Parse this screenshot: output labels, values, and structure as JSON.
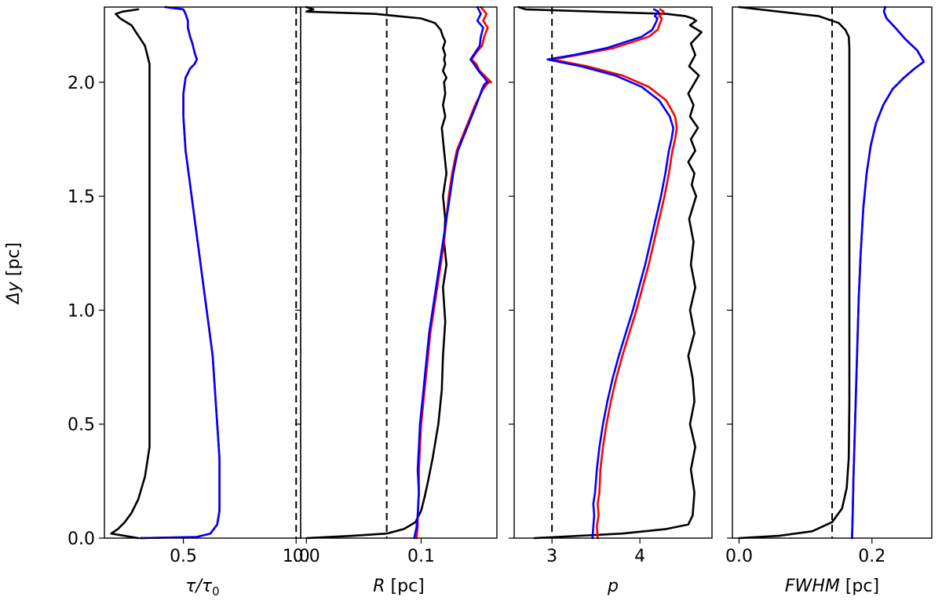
{
  "figure": {
    "ylabel_main": "Δy",
    "ylabel_unit": " [pc]",
    "ylim": [
      0,
      2.33
    ],
    "yticks": [
      0.0,
      0.5,
      1.0,
      1.5,
      2.0
    ],
    "ytick_labels": [
      "0.0",
      "0.5",
      "1.0",
      "1.5",
      "2.0"
    ]
  },
  "chart_data": [
    {
      "type": "line",
      "id": "tau",
      "xlabel_main": "τ/τ",
      "xlabel_sub": "0",
      "xlabel_unit": "",
      "xlim": [
        0.15,
        1.02
      ],
      "xticks": [
        0.5,
        1.0
      ],
      "xtick_labels": [
        "0.5",
        "1.0"
      ],
      "reference_x": 1.0,
      "series": [
        {
          "name": "black",
          "color": "#000000",
          "x": [
            0.3,
            0.18,
            0.21,
            0.24,
            0.27,
            0.3,
            0.33,
            0.35,
            0.35,
            0.35,
            0.35,
            0.35,
            0.35,
            0.35,
            0.35,
            0.35,
            0.35,
            0.35,
            0.35,
            0.34,
            0.33,
            0.31,
            0.29,
            0.27,
            0.22,
            0.2,
            0.23,
            0.3
          ],
          "y": [
            0.0,
            0.02,
            0.04,
            0.07,
            0.11,
            0.17,
            0.27,
            0.4,
            0.6,
            0.8,
            1.0,
            1.2,
            1.4,
            1.6,
            1.8,
            1.9,
            1.98,
            2.04,
            2.08,
            2.12,
            2.16,
            2.19,
            2.22,
            2.25,
            2.28,
            2.3,
            2.31,
            2.32
          ]
        },
        {
          "name": "red",
          "color": "#ff0000",
          "x": [
            0.31,
            0.56,
            0.62,
            0.65,
            0.66,
            0.66,
            0.66,
            0.65,
            0.64,
            0.63,
            0.61,
            0.59,
            0.57,
            0.55,
            0.53,
            0.51,
            0.5,
            0.5,
            0.51,
            0.53,
            0.55,
            0.56,
            0.55,
            0.54,
            0.53,
            0.52,
            0.52,
            0.51,
            0.5,
            0.42
          ],
          "y": [
            0.0,
            0.005,
            0.02,
            0.06,
            0.12,
            0.2,
            0.35,
            0.5,
            0.65,
            0.8,
            0.95,
            1.1,
            1.25,
            1.4,
            1.55,
            1.7,
            1.85,
            1.95,
            2.02,
            2.06,
            2.08,
            2.1,
            2.13,
            2.17,
            2.2,
            2.24,
            2.27,
            2.3,
            2.32,
            2.33
          ]
        },
        {
          "name": "blue",
          "color": "#0000ff",
          "x": [
            0.31,
            0.56,
            0.62,
            0.65,
            0.66,
            0.66,
            0.66,
            0.65,
            0.64,
            0.63,
            0.61,
            0.59,
            0.57,
            0.55,
            0.53,
            0.51,
            0.5,
            0.5,
            0.51,
            0.53,
            0.55,
            0.56,
            0.55,
            0.54,
            0.53,
            0.52,
            0.52,
            0.51,
            0.5,
            0.42
          ],
          "y": [
            0.0,
            0.005,
            0.02,
            0.06,
            0.12,
            0.2,
            0.35,
            0.5,
            0.65,
            0.8,
            0.95,
            1.1,
            1.25,
            1.4,
            1.55,
            1.7,
            1.85,
            1.95,
            2.02,
            2.06,
            2.08,
            2.1,
            2.13,
            2.17,
            2.2,
            2.24,
            2.27,
            2.3,
            2.32,
            2.33
          ]
        }
      ]
    },
    {
      "type": "line",
      "id": "R",
      "xlabel_main": "R",
      "xlabel_sub": "",
      "xlabel_unit": " [pc]",
      "xlim": [
        -0.005,
        0.166
      ],
      "xticks": [
        0.0,
        0.1
      ],
      "xtick_labels": [
        "0.0",
        "0.1"
      ],
      "reference_x": 0.07,
      "series": [
        {
          "name": "black",
          "color": "#000000",
          "x": [
            0.0,
            0.04,
            0.07,
            0.085,
            0.095,
            0.1,
            0.103,
            0.106,
            0.11,
            0.115,
            0.118,
            0.119,
            0.121,
            0.119,
            0.122,
            0.12,
            0.121,
            0.119,
            0.122,
            0.12,
            0.118,
            0.121,
            0.119,
            0.121,
            0.12,
            0.122,
            0.119,
            0.121,
            0.12,
            0.121,
            0.119,
            0.121,
            0.119,
            0.117,
            0.112,
            0.1,
            0.06,
            0.0,
            0.006,
            0.0
          ],
          "y": [
            0.0,
            0.01,
            0.02,
            0.04,
            0.07,
            0.12,
            0.18,
            0.25,
            0.35,
            0.5,
            0.65,
            0.8,
            0.95,
            1.1,
            1.2,
            1.3,
            1.4,
            1.5,
            1.6,
            1.7,
            1.8,
            1.85,
            1.9,
            1.95,
            2.0,
            2.02,
            2.05,
            2.08,
            2.1,
            2.12,
            2.15,
            2.18,
            2.2,
            2.23,
            2.26,
            2.28,
            2.3,
            2.31,
            2.32,
            2.33
          ]
        },
        {
          "name": "red",
          "color": "#ff0000",
          "x": [
            0.096,
            0.097,
            0.097,
            0.098,
            0.098,
            0.099,
            0.1,
            0.102,
            0.104,
            0.106,
            0.108,
            0.111,
            0.114,
            0.117,
            0.12,
            0.122,
            0.124,
            0.127,
            0.131,
            0.135,
            0.139,
            0.143,
            0.147,
            0.151,
            0.154,
            0.157,
            0.159,
            0.161,
            0.157,
            0.151,
            0.148,
            0.144,
            0.148,
            0.153,
            0.155,
            0.158,
            0.154,
            0.157,
            0.152
          ],
          "y": [
            0.0,
            0.05,
            0.1,
            0.2,
            0.3,
            0.4,
            0.5,
            0.6,
            0.7,
            0.8,
            0.9,
            1.0,
            1.1,
            1.2,
            1.3,
            1.4,
            1.5,
            1.6,
            1.7,
            1.75,
            1.8,
            1.85,
            1.9,
            1.94,
            1.97,
            1.99,
            2.0,
            2.0,
            2.02,
            2.05,
            2.08,
            2.1,
            2.13,
            2.16,
            2.2,
            2.24,
            2.27,
            2.3,
            2.33
          ]
        },
        {
          "name": "blue",
          "color": "#0000ff",
          "x": [
            0.094,
            0.096,
            0.097,
            0.098,
            0.097,
            0.098,
            0.099,
            0.101,
            0.103,
            0.105,
            0.107,
            0.11,
            0.113,
            0.116,
            0.119,
            0.122,
            0.125,
            0.128,
            0.132,
            0.136,
            0.14,
            0.144,
            0.148,
            0.151,
            0.153,
            0.155,
            0.157,
            0.158,
            0.155,
            0.15,
            0.146,
            0.143,
            0.147,
            0.151,
            0.152,
            0.154,
            0.149,
            0.152,
            0.149
          ],
          "y": [
            0.0,
            0.05,
            0.1,
            0.2,
            0.3,
            0.4,
            0.5,
            0.6,
            0.7,
            0.8,
            0.9,
            1.0,
            1.1,
            1.2,
            1.3,
            1.4,
            1.5,
            1.6,
            1.7,
            1.75,
            1.8,
            1.85,
            1.9,
            1.94,
            1.97,
            1.99,
            2.0,
            2.0,
            2.02,
            2.05,
            2.08,
            2.1,
            2.13,
            2.16,
            2.2,
            2.24,
            2.27,
            2.3,
            2.33
          ]
        }
      ]
    },
    {
      "type": "line",
      "id": "p",
      "xlabel_main": "p",
      "xlabel_sub": "",
      "xlabel_unit": "",
      "xlim": [
        2.57,
        4.82
      ],
      "xticks": [
        3,
        4
      ],
      "xtick_labels": [
        "3",
        "4"
      ],
      "reference_x": 3.0,
      "series": [
        {
          "name": "black",
          "color": "#000000",
          "x": [
            2.8,
            3.8,
            4.3,
            4.55,
            4.6,
            4.62,
            4.58,
            4.63,
            4.57,
            4.62,
            4.6,
            4.55,
            4.62,
            4.57,
            4.63,
            4.58,
            4.61,
            4.56,
            4.64,
            4.59,
            4.62,
            4.55,
            4.63,
            4.58,
            4.66,
            4.57,
            4.61,
            4.55,
            4.67,
            4.56,
            4.63,
            4.58,
            4.7,
            4.57,
            4.64,
            4.6,
            4.52,
            4.3,
            3.5,
            2.7,
            2.62
          ],
          "y": [
            0.0,
            0.02,
            0.04,
            0.06,
            0.1,
            0.2,
            0.3,
            0.4,
            0.5,
            0.6,
            0.7,
            0.8,
            0.9,
            1.0,
            1.1,
            1.2,
            1.3,
            1.4,
            1.5,
            1.55,
            1.6,
            1.65,
            1.7,
            1.75,
            1.8,
            1.85,
            1.9,
            1.95,
            2.03,
            2.07,
            2.12,
            2.17,
            2.22,
            2.25,
            2.27,
            2.28,
            2.29,
            2.3,
            2.31,
            2.32,
            2.33
          ]
        },
        {
          "name": "red",
          "color": "#ff0000",
          "x": [
            3.52,
            3.51,
            3.53,
            3.52,
            3.54,
            3.55,
            3.58,
            3.62,
            3.67,
            3.73,
            3.8,
            3.88,
            3.96,
            4.03,
            4.1,
            4.16,
            4.22,
            4.28,
            4.33,
            4.37,
            4.4,
            4.42,
            4.4,
            4.3,
            4.1,
            3.8,
            3.4,
            3.0,
            3.3,
            3.7,
            4.1,
            4.2,
            4.23,
            4.25,
            4.22,
            4.25,
            4.27,
            4.23
          ],
          "y": [
            0.0,
            0.05,
            0.1,
            0.15,
            0.2,
            0.3,
            0.4,
            0.5,
            0.6,
            0.7,
            0.8,
            0.9,
            1.0,
            1.1,
            1.2,
            1.3,
            1.4,
            1.5,
            1.6,
            1.7,
            1.75,
            1.8,
            1.85,
            1.92,
            1.98,
            2.03,
            2.07,
            2.1,
            2.12,
            2.15,
            2.2,
            2.23,
            2.26,
            2.28,
            2.29,
            2.3,
            2.31,
            2.32
          ]
        },
        {
          "name": "blue",
          "color": "#0000ff",
          "x": [
            3.46,
            3.47,
            3.48,
            3.47,
            3.49,
            3.51,
            3.54,
            3.58,
            3.63,
            3.69,
            3.76,
            3.84,
            3.92,
            3.99,
            4.06,
            4.12,
            4.18,
            4.24,
            4.29,
            4.33,
            4.36,
            4.38,
            4.34,
            4.22,
            4.02,
            3.72,
            3.33,
            2.95,
            3.25,
            3.62,
            4.02,
            4.14,
            4.18,
            4.2,
            4.17,
            4.19,
            4.21,
            4.16
          ],
          "y": [
            0.0,
            0.05,
            0.1,
            0.15,
            0.2,
            0.3,
            0.4,
            0.5,
            0.6,
            0.7,
            0.8,
            0.9,
            1.0,
            1.1,
            1.2,
            1.3,
            1.4,
            1.5,
            1.6,
            1.7,
            1.75,
            1.8,
            1.85,
            1.92,
            1.98,
            2.03,
            2.07,
            2.1,
            2.12,
            2.15,
            2.2,
            2.23,
            2.26,
            2.28,
            2.29,
            2.3,
            2.31,
            2.32
          ]
        }
      ]
    },
    {
      "type": "line",
      "id": "fwhm",
      "xlabel_main": "FWHM",
      "xlabel_sub": "",
      "xlabel_unit": " [pc]",
      "xlim": [
        -0.01,
        0.29
      ],
      "xticks": [
        0.0,
        0.2
      ],
      "xtick_labels": [
        "0.0",
        "0.2"
      ],
      "reference_x": 0.14,
      "series": [
        {
          "name": "black",
          "color": "#000000",
          "x": [
            0.0,
            0.06,
            0.11,
            0.14,
            0.155,
            0.162,
            0.165,
            0.166,
            0.166,
            0.166,
            0.166,
            0.166,
            0.166,
            0.165,
            0.16,
            0.15,
            0.12,
            0.06,
            0.0
          ],
          "y": [
            0.0,
            0.01,
            0.03,
            0.07,
            0.13,
            0.22,
            0.35,
            0.6,
            1.0,
            1.4,
            1.8,
            2.05,
            2.15,
            2.2,
            2.23,
            2.26,
            2.29,
            2.31,
            2.33
          ]
        },
        {
          "name": "red",
          "color": "#ff0000",
          "x": [
            0.17,
            0.171,
            0.172,
            0.174,
            0.176,
            0.178,
            0.18,
            0.183,
            0.187,
            0.192,
            0.198,
            0.206,
            0.217,
            0.231,
            0.248,
            0.264,
            0.278,
            0.268,
            0.25,
            0.235,
            0.222,
            0.218,
            0.22
          ],
          "y": [
            0.0,
            0.1,
            0.25,
            0.45,
            0.65,
            0.85,
            1.05,
            1.25,
            1.45,
            1.6,
            1.72,
            1.82,
            1.9,
            1.97,
            2.02,
            2.06,
            2.09,
            2.14,
            2.19,
            2.24,
            2.28,
            2.31,
            2.33
          ]
        },
        {
          "name": "blue",
          "color": "#0000ff",
          "x": [
            0.17,
            0.171,
            0.172,
            0.174,
            0.176,
            0.178,
            0.18,
            0.183,
            0.187,
            0.192,
            0.198,
            0.206,
            0.217,
            0.231,
            0.248,
            0.264,
            0.278,
            0.268,
            0.25,
            0.235,
            0.222,
            0.218,
            0.22
          ],
          "y": [
            0.0,
            0.1,
            0.25,
            0.45,
            0.65,
            0.85,
            1.05,
            1.25,
            1.45,
            1.6,
            1.72,
            1.82,
            1.9,
            1.97,
            2.02,
            2.06,
            2.09,
            2.14,
            2.19,
            2.24,
            2.28,
            2.31,
            2.33
          ]
        }
      ]
    }
  ]
}
